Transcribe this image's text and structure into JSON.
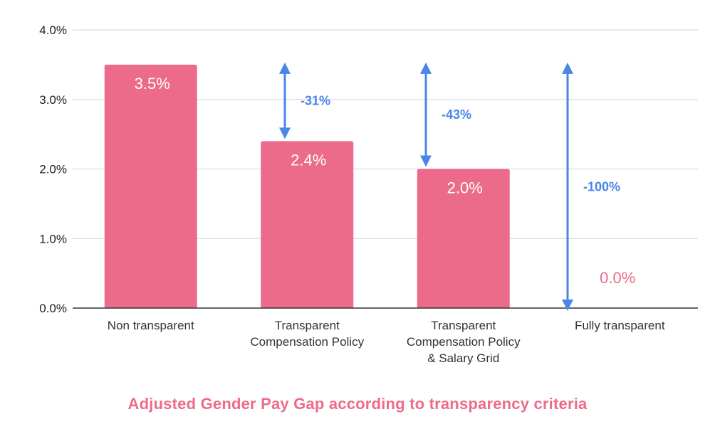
{
  "chart_data": {
    "type": "bar",
    "title": "Adjusted Gender Pay Gap according to transparency criteria",
    "xlabel": "",
    "ylabel": "",
    "categories": [
      [
        "Non transparent"
      ],
      [
        "Transparent",
        "Compensation Policy"
      ],
      [
        "Transparent",
        "Compensation Policy",
        "& Salary Grid"
      ],
      [
        "Fully transparent"
      ]
    ],
    "values": [
      3.5,
      2.4,
      2.0,
      0.0
    ],
    "data_labels": [
      "3.5%",
      "2.4%",
      "2.0%",
      "0.0%"
    ],
    "ylim": [
      0,
      4
    ],
    "yticks": [
      0,
      1,
      2,
      3,
      4
    ],
    "ytick_labels": [
      "0.0%",
      "1.0%",
      "2.0%",
      "3.0%",
      "4.0%"
    ],
    "grid": true,
    "annotations": [
      {
        "category_index": 1,
        "from": 3.5,
        "to": 2.4,
        "label": "-31%"
      },
      {
        "category_index": 2,
        "from": 3.5,
        "to": 2.0,
        "label": "-43%"
      },
      {
        "category_index": 3,
        "from": 3.5,
        "to": 0.0,
        "label": "-100%"
      }
    ],
    "colors": {
      "bar": "#ed6b8a",
      "bar_label": "#ffffff",
      "zero_label": "#ed6b8a",
      "arrow": "#4a86e8",
      "grid": "#d4d4d4",
      "axis": "#333333",
      "title": "#ed6b8a"
    }
  }
}
